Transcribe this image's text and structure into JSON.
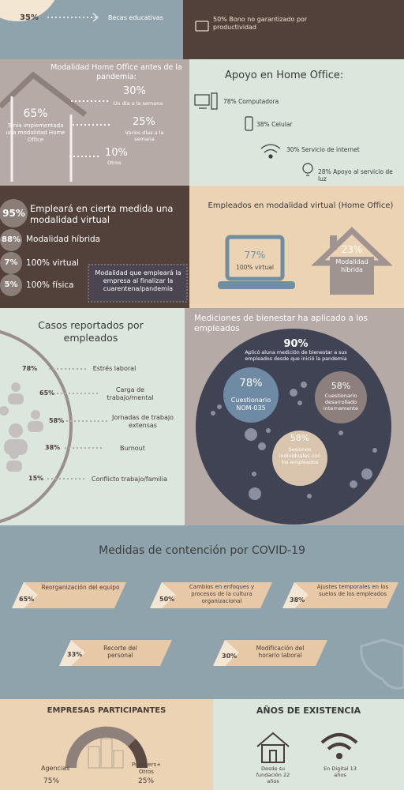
{
  "top": {
    "left": {
      "percent": "35%",
      "label": "Becas educativas"
    },
    "right": {
      "text": "50% Bono no garantizado por productividad"
    }
  },
  "home_office_before": {
    "title": "Modalidad Home Office antes de la pandemia:",
    "main": {
      "percent": "65%",
      "label": "Tenía implementada una modalidad Home Office"
    },
    "items": [
      {
        "percent": "30%",
        "label": "Un día a la semana"
      },
      {
        "percent": "25%",
        "label": "Varios días a la semana"
      },
      {
        "percent": "10%",
        "label": "Otros"
      }
    ]
  },
  "support": {
    "title": "Apoyo en Home Office:",
    "items": [
      {
        "percent": "78%",
        "label": "Computadora"
      },
      {
        "percent": "38%",
        "label": "Celular"
      },
      {
        "percent": "30%",
        "label": "Servicio de internet"
      },
      {
        "percent": "28%",
        "label": "Apoyo al servicio de luz"
      }
    ]
  },
  "future": {
    "main": {
      "percent": "95%",
      "label": "Empleará en cierta medida una modalidad virtual"
    },
    "items": [
      {
        "percent": "88%",
        "label": "Modalidad híbrida"
      },
      {
        "percent": "7%",
        "label": "100% virtual"
      },
      {
        "percent": "5%",
        "label": "100% física"
      }
    ],
    "note": "Modalidad que empleará la empresa al finalizar la cuarentena/pandemia"
  },
  "virtual": {
    "title": "Empleados en modalidad virtual (Home Office)",
    "laptop": {
      "percent": "77%",
      "label": "100% virtual"
    },
    "house": {
      "percent": "23%",
      "label": "Modalidad híbrida"
    }
  },
  "cases": {
    "title": "Casos reportados por empleados",
    "items": [
      {
        "percent": "78%",
        "label": "Estrés laboral"
      },
      {
        "percent": "65%",
        "label": "Carga de trabajo/mental"
      },
      {
        "percent": "58%",
        "label": "Jornadas de trabajo extensas"
      },
      {
        "percent": "38%",
        "label": "Burnout"
      },
      {
        "percent": "15%",
        "label": "Conflicto trabajo/familia"
      }
    ]
  },
  "wellbeing": {
    "title": "Mediciones de bienestar ha aplicado a los empleados",
    "main": {
      "percent": "90%",
      "label": "Aplicó aluna medición de bienestar a sus empleados desde que inició la pandemia"
    },
    "items": [
      {
        "percent": "78%",
        "label": "Cuestionario NOM-035"
      },
      {
        "percent": "58%",
        "label": "Cuestionario desarrollado internamente"
      },
      {
        "percent": "58%",
        "label": "Sesiones individuales con los empleados"
      }
    ]
  },
  "measures": {
    "title": "Medidas de contención por COVID-19",
    "items": [
      {
        "percent": "65%",
        "label": "Reorganización del equipo"
      },
      {
        "percent": "50%",
        "label": "Cambios en enfoques y procesos de la cultura organizacional"
      },
      {
        "percent": "38%",
        "label": "Ajustes temporales en los suelos de los empleados"
      },
      {
        "percent": "33%",
        "label": "Recorte del personal"
      },
      {
        "percent": "30%",
        "label": "Modificación del horario laboral"
      }
    ]
  },
  "companies": {
    "title": "EMPRESAS PARTICIPANTES",
    "items": [
      {
        "label": "Agencias",
        "percent": "75%"
      },
      {
        "label": "Publisers+ Otros",
        "percent": "25%"
      }
    ]
  },
  "years": {
    "title": "AÑOS DE EXISTENCIA",
    "items": [
      {
        "label": "Desde su fundación 22 años"
      },
      {
        "label": "En Digital 13 años"
      }
    ]
  }
}
